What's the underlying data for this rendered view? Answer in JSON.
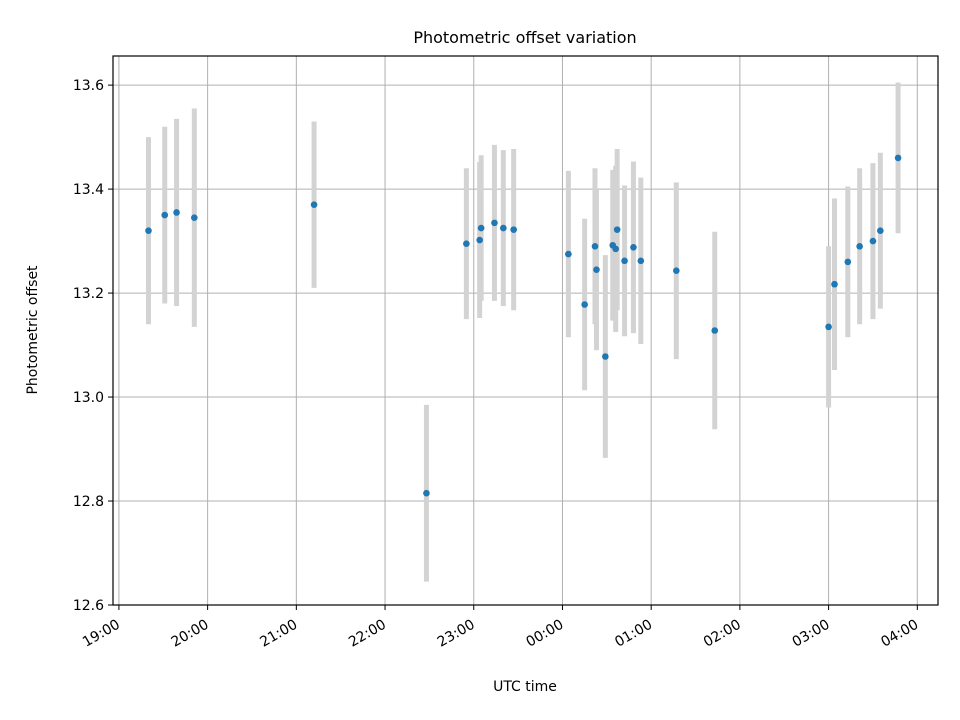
{
  "chart_data": {
    "type": "scatter",
    "title": "Photometric offset variation",
    "xlabel": "UTC time",
    "ylabel": "Photometric offset",
    "xlim": [
      "18:56",
      "04:14"
    ],
    "ylim": [
      12.6,
      13.656
    ],
    "grid": true,
    "x_ticks": [
      "19:00",
      "20:00",
      "21:00",
      "22:00",
      "23:00",
      "00:00",
      "01:00",
      "02:00",
      "03:00",
      "04:00"
    ],
    "y_ticks": [
      12.6,
      12.8,
      13.0,
      13.2,
      13.4,
      13.6
    ],
    "y_tick_labels": [
      "12.6",
      "12.8",
      "13.0",
      "13.2",
      "13.4",
      "13.6"
    ],
    "point_color": "#1f77b4",
    "errorbar_color": "#d3d3d3",
    "series": [
      {
        "points": [
          {
            "x": "19:20",
            "y": 13.32,
            "err": 0.18
          },
          {
            "x": "19:31",
            "y": 13.35,
            "err": 0.17
          },
          {
            "x": "19:39",
            "y": 13.355,
            "err": 0.18
          },
          {
            "x": "19:51",
            "y": 13.345,
            "err": 0.21
          },
          {
            "x": "21:12",
            "y": 13.37,
            "err": 0.16
          },
          {
            "x": "22:28",
            "y": 12.815,
            "err": 0.17
          },
          {
            "x": "22:55",
            "y": 13.295,
            "err": 0.145
          },
          {
            "x": "23:04",
            "y": 13.302,
            "err": 0.15
          },
          {
            "x": "23:05",
            "y": 13.325,
            "err": 0.14
          },
          {
            "x": "23:14",
            "y": 13.335,
            "err": 0.15
          },
          {
            "x": "23:20",
            "y": 13.325,
            "err": 0.15
          },
          {
            "x": "23:27",
            "y": 13.322,
            "err": 0.155
          },
          {
            "x": "00:04",
            "y": 13.275,
            "err": 0.16
          },
          {
            "x": "00:15",
            "y": 13.178,
            "err": 0.165
          },
          {
            "x": "00:22",
            "y": 13.29,
            "err": 0.15
          },
          {
            "x": "00:23",
            "y": 13.245,
            "err": 0.155
          },
          {
            "x": "00:29",
            "y": 13.078,
            "err": 0.195
          },
          {
            "x": "00:34",
            "y": 13.292,
            "err": 0.145
          },
          {
            "x": "00:36",
            "y": 13.285,
            "err": 0.16
          },
          {
            "x": "00:37",
            "y": 13.322,
            "err": 0.155
          },
          {
            "x": "00:42",
            "y": 13.262,
            "err": 0.145
          },
          {
            "x": "00:48",
            "y": 13.288,
            "err": 0.165
          },
          {
            "x": "00:53",
            "y": 13.262,
            "err": 0.16
          },
          {
            "x": "01:17",
            "y": 13.243,
            "err": 0.17
          },
          {
            "x": "01:43",
            "y": 13.128,
            "err": 0.19
          },
          {
            "x": "03:00",
            "y": 13.135,
            "err": 0.155
          },
          {
            "x": "03:04",
            "y": 13.217,
            "err": 0.165
          },
          {
            "x": "03:13",
            "y": 13.26,
            "err": 0.145
          },
          {
            "x": "03:21",
            "y": 13.29,
            "err": 0.15
          },
          {
            "x": "03:30",
            "y": 13.3,
            "err": 0.15
          },
          {
            "x": "03:35",
            "y": 13.32,
            "err": 0.15
          },
          {
            "x": "03:47",
            "y": 13.46,
            "err": 0.145
          }
        ]
      }
    ]
  }
}
